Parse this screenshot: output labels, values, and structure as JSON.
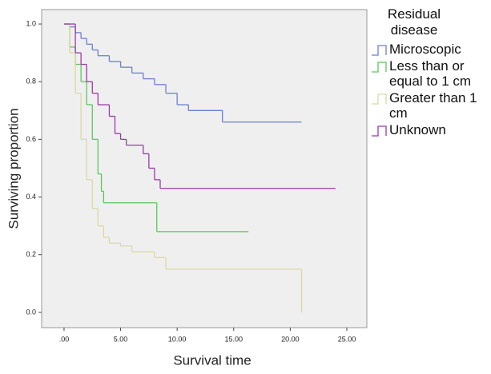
{
  "chart_data": {
    "type": "step",
    "xlabel": "Survival time",
    "ylabel": "Surviving proportion",
    "xlim": [
      -1.98,
      26.77
    ],
    "ylim": [
      -0.053,
      1.05
    ],
    "xticks": [
      {
        "value": 0,
        "label": ".00"
      },
      {
        "value": 5,
        "label": "5.00"
      },
      {
        "value": 10,
        "label": "10.00"
      },
      {
        "value": 15,
        "label": "15.00"
      },
      {
        "value": 20,
        "label": "20.00"
      },
      {
        "value": 25,
        "label": "25.00"
      }
    ],
    "yticks": [
      {
        "value": 0,
        "label": "0.0"
      },
      0.2,
      0.4,
      0.6,
      0.8,
      {
        "value": 1,
        "label": "1.0"
      }
    ],
    "legend_title": "Residual disease",
    "legend": "right",
    "series": [
      {
        "name": "Microscopic",
        "color": "#6b7fd1",
        "x": [
          0,
          0.5,
          1,
          1.5,
          2,
          2.5,
          3,
          4,
          5,
          6,
          7,
          8,
          9,
          10,
          11,
          14,
          21
        ],
        "values": [
          1.0,
          0.99,
          0.97,
          0.95,
          0.93,
          0.91,
          0.89,
          0.87,
          0.85,
          0.83,
          0.81,
          0.79,
          0.76,
          0.72,
          0.7,
          0.66,
          0.66
        ]
      },
      {
        "name": "Less than or equal to 1 cm",
        "color": "#5cc65c",
        "x": [
          0,
          0.5,
          1,
          1.5,
          2,
          2.5,
          3,
          3.3,
          3.5,
          8.2,
          16.3
        ],
        "values": [
          1.0,
          0.92,
          0.86,
          0.8,
          0.72,
          0.6,
          0.48,
          0.42,
          0.38,
          0.28,
          0.28
        ]
      },
      {
        "name": "Greater than 1 cm",
        "color": "#dcd9a0",
        "x": [
          0,
          0.5,
          1,
          1.5,
          2,
          2.5,
          3,
          3.5,
          4,
          5,
          6,
          8,
          9,
          21,
          21
        ],
        "values": [
          1.0,
          0.9,
          0.76,
          0.6,
          0.46,
          0.36,
          0.3,
          0.26,
          0.24,
          0.23,
          0.21,
          0.19,
          0.15,
          0.15,
          0.0
        ]
      },
      {
        "name": "Unknown",
        "color": "#9b3aa8",
        "x": [
          0,
          1,
          1.5,
          2,
          2.5,
          3,
          4,
          4.5,
          5,
          5.5,
          7,
          7.5,
          8,
          8.5,
          24
        ],
        "values": [
          1.0,
          0.9,
          0.86,
          0.8,
          0.76,
          0.72,
          0.68,
          0.62,
          0.6,
          0.58,
          0.55,
          0.5,
          0.46,
          0.43,
          0.43
        ]
      }
    ]
  }
}
